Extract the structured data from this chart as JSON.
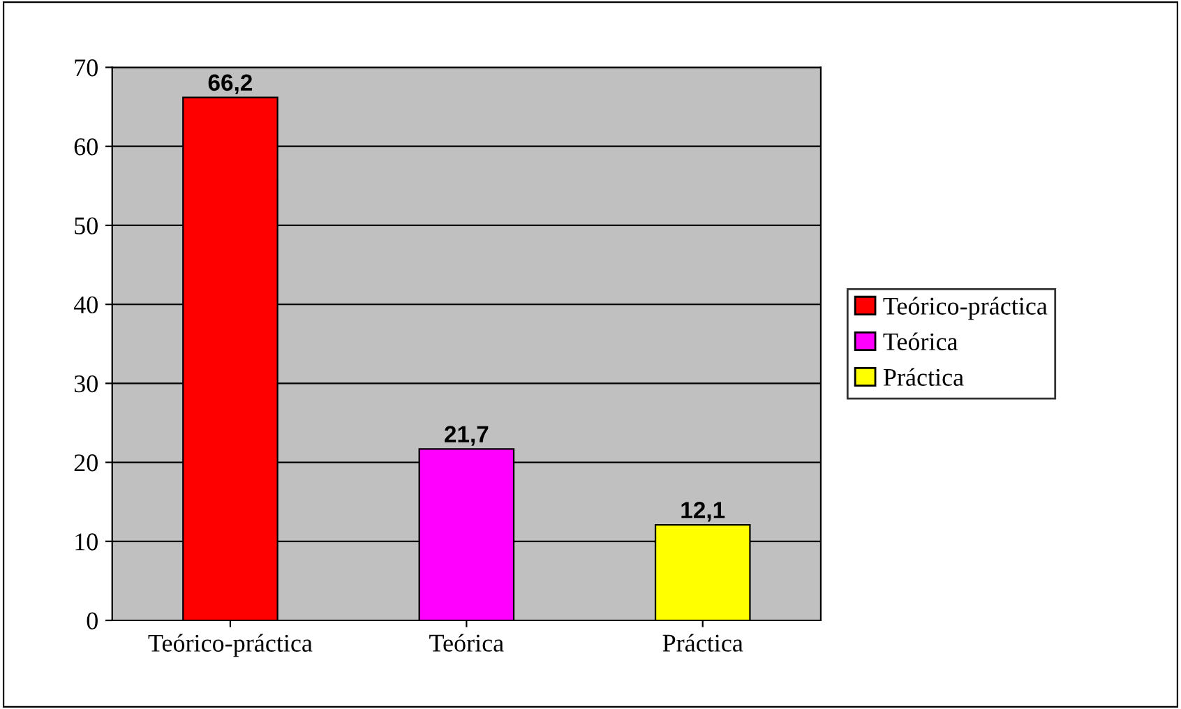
{
  "chart_data": {
    "type": "bar",
    "categories": [
      "Teórico-práctica",
      "Teórica",
      "Práctica"
    ],
    "series": [
      {
        "name": "Teórico-práctica",
        "color": "#ff0000",
        "values": [
          66.2,
          null,
          null
        ],
        "value_labels": [
          "66,2",
          null,
          null
        ]
      },
      {
        "name": "Teórica",
        "color": "#ff00ff",
        "values": [
          null,
          21.7,
          null
        ],
        "value_labels": [
          null,
          "21,7",
          null
        ]
      },
      {
        "name": "Práctica",
        "color": "#ffff00",
        "values": [
          null,
          null,
          12.1
        ],
        "value_labels": [
          null,
          null,
          "12,1"
        ]
      }
    ],
    "ylim": [
      0,
      70
    ],
    "yticks": [
      0,
      10,
      20,
      30,
      40,
      50,
      60,
      70
    ],
    "grid": "y",
    "legend": "right"
  }
}
